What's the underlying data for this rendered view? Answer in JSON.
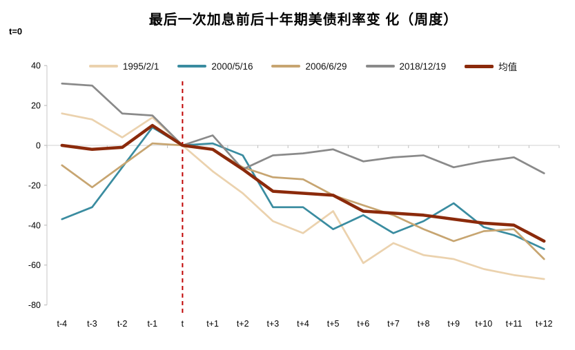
{
  "annotation_t0": "t=0",
  "colors": {
    "series_1995": "#EBD2AE",
    "series_2000": "#3A8CA0",
    "series_2006": "#C7A571",
    "series_2018": "#8A8A8A",
    "series_mean": "#8B2A0B",
    "marker_dashed_line": "#C00000",
    "axis_line": "#D4D2D2",
    "zero_line": "#D9D9D9",
    "tick": "#BFBFBF",
    "text": "#000000"
  },
  "chart_data": {
    "type": "line",
    "title": "最后一次加息前后十年期美债利率变 化（周度）",
    "xlabel": "",
    "ylabel": "",
    "ylim": [
      -80,
      40
    ],
    "ytick_step": 20,
    "ytick_labels": [
      "40",
      "20",
      "0",
      "-20",
      "-40",
      "-60",
      "-80"
    ],
    "grid": "zero-line-only",
    "legend_position": "top",
    "categories": [
      "t-4",
      "t-3",
      "t-2",
      "t-1",
      "t",
      "t+1",
      "t+2",
      "t+3",
      "t+4",
      "t+5",
      "t+6",
      "t+7",
      "t+8",
      "t+9",
      "t+10",
      "t+11",
      "t+12"
    ],
    "marker_line": {
      "at_category": "t",
      "color": "#C00000",
      "style": "dashed",
      "label": "t=0"
    },
    "series": [
      {
        "name": "1995/2/1",
        "color": "#EBD2AE",
        "emphasis": false,
        "values": [
          16,
          13,
          4,
          14,
          0,
          -13,
          -24,
          -38,
          -44,
          -33,
          -59,
          -49,
          -55,
          -57,
          -62,
          -65,
          -67
        ]
      },
      {
        "name": "2000/5/16",
        "color": "#3A8CA0",
        "emphasis": false,
        "values": [
          -37,
          -31,
          -11,
          9,
          0,
          1,
          -5,
          -31,
          -31,
          -42,
          -35,
          -44,
          -38,
          -29,
          -41,
          -45,
          -52
        ]
      },
      {
        "name": "2006/6/29",
        "color": "#C7A571",
        "emphasis": false,
        "values": [
          -10,
          -21,
          -10,
          1,
          0,
          -2,
          -11,
          -16,
          -17,
          -25,
          -30,
          -35,
          -42,
          -48,
          -43,
          -42,
          -57
        ]
      },
      {
        "name": "2018/12/19",
        "color": "#8A8A8A",
        "emphasis": false,
        "values": [
          31,
          30,
          16,
          15,
          0,
          5,
          -12,
          -5,
          -4,
          -2,
          -8,
          -6,
          -5,
          -11,
          -8,
          -6,
          -14
        ]
      },
      {
        "name": "均值",
        "color": "#8B2A0B",
        "emphasis": true,
        "values": [
          0,
          -2,
          -1,
          10,
          0,
          -2,
          -12,
          -23,
          -24,
          -25,
          -33,
          -34,
          -35,
          -37,
          -39,
          -40,
          -48
        ]
      }
    ]
  }
}
